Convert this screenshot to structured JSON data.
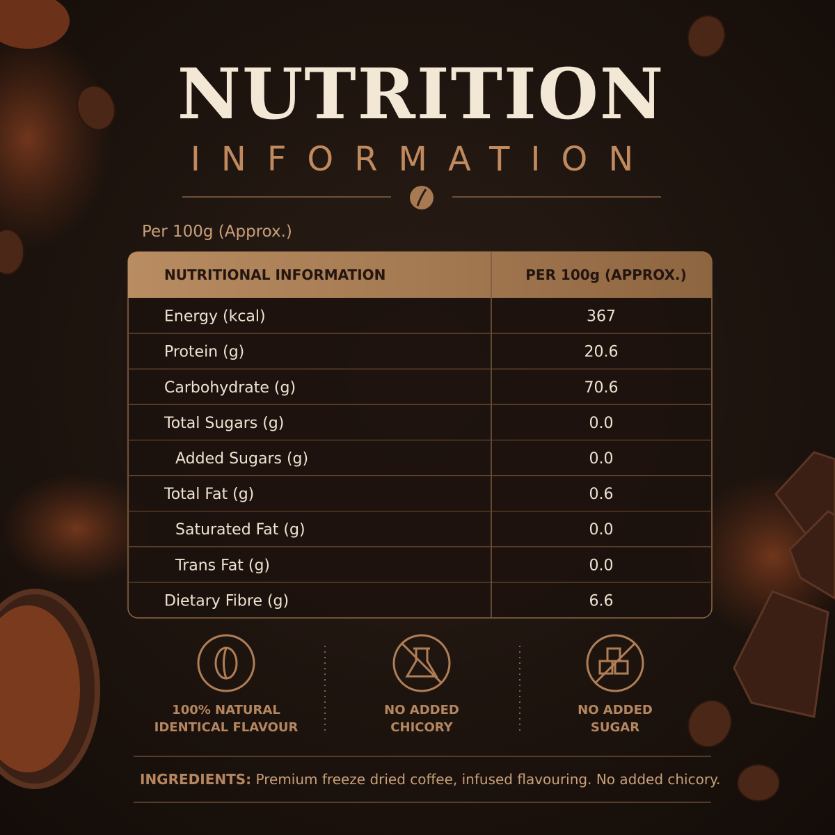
{
  "header": {
    "title": "NUTRITION",
    "subtitle": "INFORMATION"
  },
  "serving_note": "Per 100g (Approx.)",
  "table": {
    "columns": [
      "NUTRITIONAL INFORMATION",
      "PER 100g (APPROX.)"
    ],
    "rows": [
      [
        "Energy (kcal)",
        "367"
      ],
      [
        "Protein (g)",
        "20.6"
      ],
      [
        "Carbohydrate (g)",
        "70.6"
      ],
      [
        "Total Sugars (g)",
        "0.0"
      ],
      [
        "Added Sugars (g)",
        "0.0"
      ],
      [
        "Total Fat (g)",
        "0.6"
      ],
      [
        "Saturated Fat (g)",
        "0.0"
      ],
      [
        "Trans Fat (g)",
        "0.0"
      ],
      [
        "Dietary Fibre (g)",
        "6.6"
      ]
    ]
  },
  "badges": [
    {
      "lines": [
        "100% NATURAL",
        "IDENTICAL FLAVOUR"
      ]
    },
    {
      "lines": [
        "NO ADDED",
        "CHICORY"
      ]
    },
    {
      "lines": [
        "NO ADDED",
        "SUGAR"
      ]
    }
  ],
  "ingredients": {
    "label": "INGREDIENTS:",
    "text": "Premium freeze dried coffee, infused flavouring. No added chicory."
  }
}
